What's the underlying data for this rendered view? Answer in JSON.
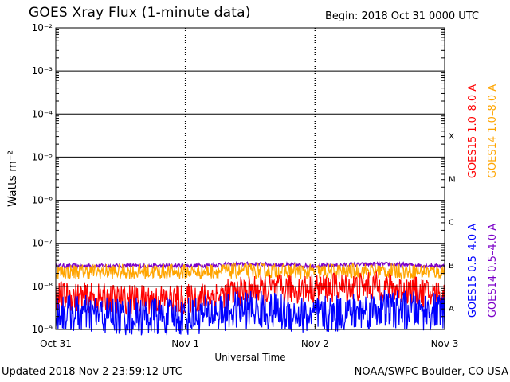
{
  "header": {
    "title": "GOES Xray Flux (1-minute data)",
    "begin": "Begin:  2018 Oct 31 0000 UTC"
  },
  "footer": {
    "updated": "Updated 2018 Nov  2 23:59:12 UTC",
    "credit": "NOAA/SWPC Boulder, CO USA"
  },
  "chart_data": {
    "type": "line",
    "title": "GOES Xray Flux (1-minute data)",
    "xlabel": "Universal Time",
    "ylabel": "Watts m⁻²",
    "y_scale": "log",
    "ylim": [
      1e-09,
      0.01
    ],
    "x_ticks": [
      "Oct 31",
      "Nov 1",
      "Nov 2",
      "Nov 3"
    ],
    "y_ticks": [
      "10⁻⁹",
      "10⁻⁸",
      "10⁻⁷",
      "10⁻⁶",
      "10⁻⁵",
      "10⁻⁴",
      "10⁻³",
      "10⁻²"
    ],
    "flare_classes": [
      "X",
      "M",
      "C",
      "B",
      "A"
    ],
    "legend": [
      {
        "label": "GOES15 1.0–8.0 A",
        "color": "#ff0000"
      },
      {
        "label": "GOES14 1.0–8.0 A",
        "color": "#ffa500"
      },
      {
        "label": "GOES15 0.5–4.0 A",
        "color": "#0000ff"
      },
      {
        "label": "GOES14 0.5–4.0 A",
        "color": "#7b00c8"
      }
    ],
    "series": [
      {
        "name": "GOES14 0.5–4.0 A",
        "color": "#7b00c8",
        "x": [
          0,
          0.5,
          1,
          1.5,
          2,
          2.5,
          3
        ],
        "values": [
          3e-08,
          3e-08,
          3e-08,
          3.3e-08,
          3e-08,
          3.3e-08,
          3e-08
        ]
      },
      {
        "name": "GOES14 1.0–8.0 A",
        "color": "#ffa500",
        "x": [
          0,
          0.5,
          1,
          1.5,
          2,
          2.5,
          3
        ],
        "values": [
          2.2e-08,
          2.2e-08,
          2.2e-08,
          2.3e-08,
          2.2e-08,
          2.3e-08,
          2.2e-08
        ]
      },
      {
        "name": "GOES15 1.0–8.0 A",
        "color": "#ff0000",
        "x": [
          0,
          0.5,
          1,
          1.5,
          2,
          2.5,
          3
        ],
        "values": [
          6e-09,
          5e-09,
          5e-09,
          8e-09,
          9e-09,
          1e-08,
          6e-09
        ]
      },
      {
        "name": "GOES15 0.5–4.0 A",
        "color": "#0000ff",
        "x": [
          0,
          0.5,
          1,
          1.5,
          2,
          2.5,
          3
        ],
        "values": [
          2.5e-09,
          2e-09,
          2e-09,
          3e-09,
          2e-09,
          3e-09,
          2.5e-09
        ]
      }
    ]
  }
}
